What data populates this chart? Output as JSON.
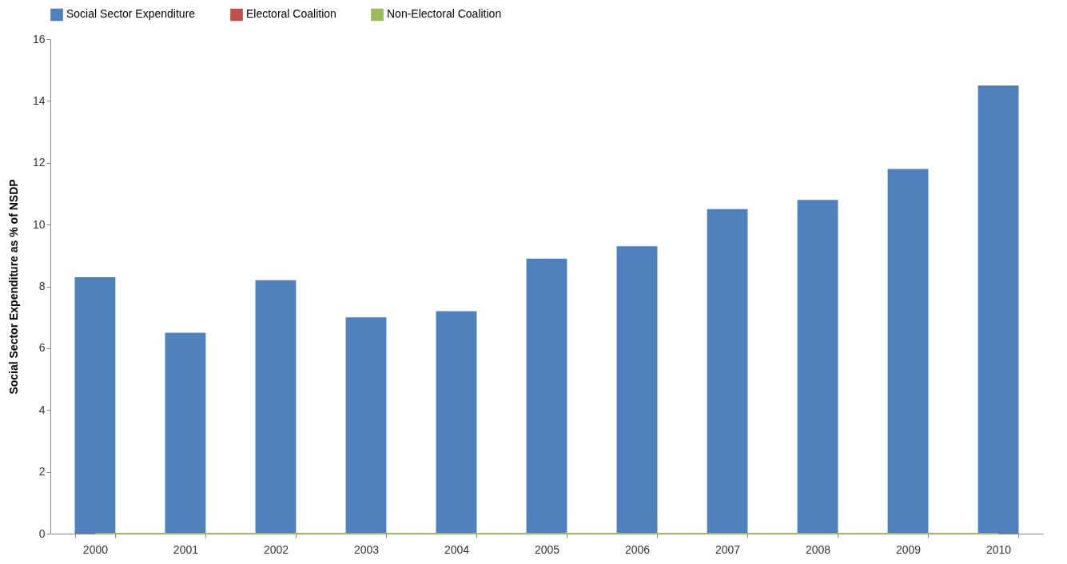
{
  "chart_data": {
    "type": "bar",
    "ylabel": "Social Sector Expenditure as % of NSDP",
    "categories": [
      "2000",
      "2001",
      "2002",
      "2003",
      "2004",
      "2005",
      "2006",
      "2007",
      "2008",
      "2009",
      "2010"
    ],
    "series": [
      {
        "name": "Social Sector Expenditure",
        "color": "#4f81bd",
        "values": [
          8.3,
          6.5,
          8.2,
          7.0,
          7.2,
          8.9,
          9.3,
          10.5,
          10.8,
          11.8,
          14.5
        ]
      },
      {
        "name": "Electoral Coalition",
        "type": "line",
        "color": "#c0504d",
        "values": [
          null,
          null,
          null,
          null,
          null,
          null,
          null,
          null,
          null,
          null,
          null
        ]
      },
      {
        "name": "Non-Electoral Coalition",
        "type": "line",
        "color": "#9bbb59",
        "values": [
          0,
          0,
          0,
          0,
          0,
          0,
          0,
          0,
          0,
          0,
          0
        ]
      }
    ],
    "ylim": [
      0,
      16
    ],
    "yticks": [
      0,
      2,
      4,
      6,
      8,
      10,
      12,
      14,
      16
    ],
    "grid": false,
    "legend": "top"
  }
}
